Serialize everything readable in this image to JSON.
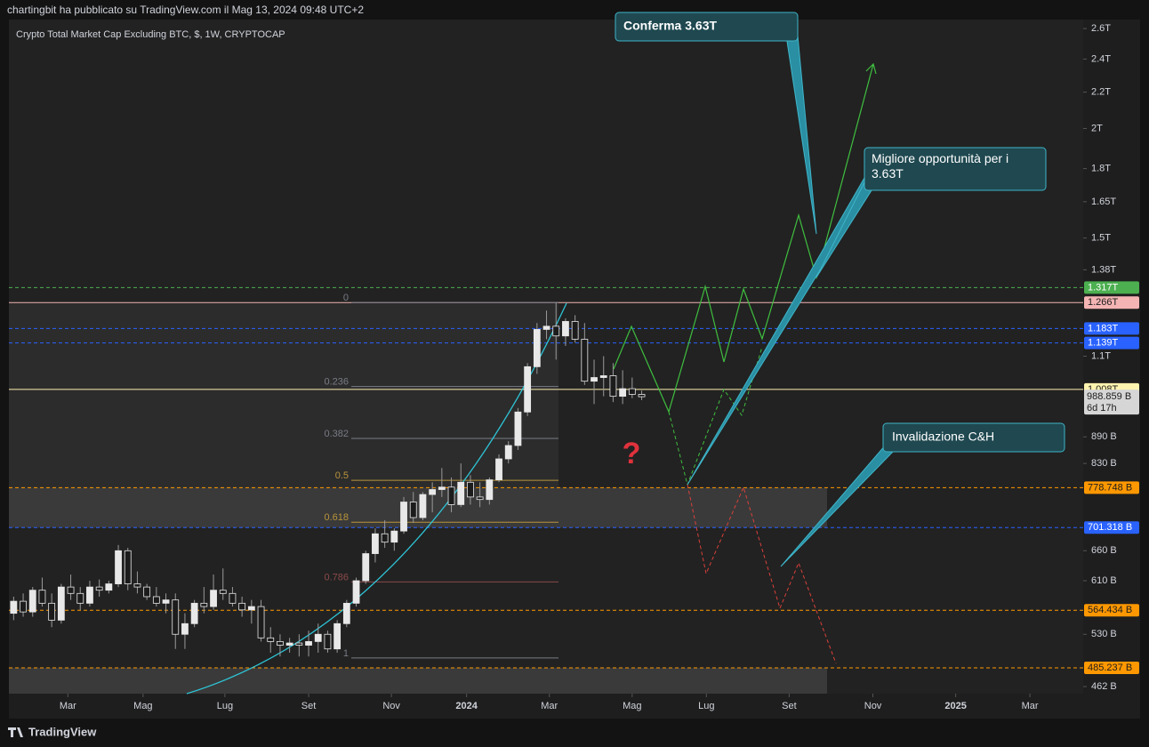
{
  "header": {
    "publisher": "chartingbit ha pubblicato su TradingView.com il Mag 13, 2024 09:48 UTC+2"
  },
  "footer": {
    "brand": "TradingView"
  },
  "chart_data": {
    "type": "candlestick",
    "title": "Crypto Total Market Cap Excluding BTC, $, 1W, CRYPTOCAP",
    "log_scale": true,
    "up_color": "#e8e8e8",
    "down_color": "#1c1c1c",
    "x": [
      0,
      1,
      2,
      3,
      4,
      5,
      6,
      7,
      8,
      9,
      10,
      11,
      12,
      13,
      14,
      15,
      16,
      17,
      18,
      19,
      20,
      21,
      22,
      23,
      24,
      25,
      26,
      27,
      28,
      29,
      30,
      31,
      32,
      33,
      34,
      35,
      36,
      37,
      38,
      39,
      40,
      41,
      42,
      43,
      44,
      45,
      46,
      47,
      48,
      49,
      50,
      51,
      52,
      53,
      54,
      55,
      56,
      57,
      58,
      59,
      60,
      61,
      62,
      63,
      64,
      65,
      66
    ],
    "open": [
      560,
      578,
      562,
      595,
      575,
      550,
      600,
      590,
      575,
      600,
      595,
      605,
      660,
      605,
      600,
      585,
      575,
      580,
      530,
      545,
      575,
      570,
      595,
      590,
      575,
      565,
      570,
      525,
      520,
      515,
      518,
      515,
      520,
      530,
      510,
      545,
      575,
      610,
      655,
      690,
      675,
      695,
      750,
      720,
      765,
      775,
      780,
      745,
      790,
      760,
      755,
      795,
      840,
      870,
      950,
      1070,
      1180,
      1190,
      1160,
      1205,
      1150,
      1030,
      1040,
      1045,
      990,
      1010,
      995
    ],
    "high": [
      585,
      590,
      600,
      615,
      590,
      605,
      620,
      600,
      610,
      612,
      610,
      670,
      665,
      625,
      605,
      600,
      590,
      590,
      560,
      580,
      600,
      620,
      630,
      600,
      585,
      580,
      580,
      540,
      530,
      525,
      530,
      535,
      545,
      535,
      550,
      580,
      615,
      660,
      700,
      715,
      700,
      760,
      770,
      770,
      790,
      820,
      800,
      830,
      805,
      790,
      800,
      850,
      880,
      960,
      1080,
      1200,
      1240,
      1266,
      1215,
      1225,
      1200,
      1090,
      1100,
      1080,
      1060,
      1040,
      1005
    ],
    "low": [
      550,
      555,
      555,
      570,
      540,
      545,
      580,
      565,
      570,
      585,
      590,
      600,
      595,
      590,
      580,
      570,
      560,
      510,
      510,
      540,
      560,
      565,
      580,
      570,
      555,
      545,
      520,
      505,
      500,
      505,
      500,
      500,
      505,
      505,
      505,
      540,
      570,
      605,
      640,
      665,
      660,
      690,
      710,
      715,
      730,
      760,
      730,
      740,
      745,
      740,
      745,
      790,
      830,
      860,
      940,
      1050,
      1150,
      1090,
      1130,
      1140,
      1020,
      970,
      990,
      975,
      970,
      985,
      980
    ],
    "close": [
      578,
      562,
      595,
      575,
      550,
      600,
      590,
      575,
      600,
      595,
      605,
      660,
      605,
      600,
      585,
      575,
      580,
      530,
      545,
      575,
      570,
      595,
      590,
      575,
      565,
      570,
      525,
      520,
      515,
      518,
      515,
      520,
      530,
      510,
      545,
      575,
      610,
      655,
      690,
      675,
      695,
      750,
      720,
      765,
      775,
      780,
      745,
      790,
      760,
      755,
      795,
      840,
      870,
      950,
      1070,
      1180,
      1190,
      1160,
      1205,
      1150,
      1030,
      1040,
      1045,
      990,
      1010,
      995,
      988.859
    ],
    "xlim": [
      -0.5,
      112.4
    ],
    "xticks": [
      {
        "value": 5.7,
        "label": "Mar"
      },
      {
        "value": 13.6,
        "label": "Mag"
      },
      {
        "value": 22.2,
        "label": "Lug"
      },
      {
        "value": 31.0,
        "label": "Set"
      },
      {
        "value": 39.7,
        "label": "Nov"
      },
      {
        "value": 47.6,
        "label": "2024"
      },
      {
        "value": 56.3,
        "label": "Mar"
      },
      {
        "value": 65.0,
        "label": "Mag"
      },
      {
        "value": 72.8,
        "label": "Lug"
      },
      {
        "value": 81.5,
        "label": "Set"
      },
      {
        "value": 90.3,
        "label": "Nov"
      },
      {
        "value": 99.0,
        "label": "2025"
      },
      {
        "value": 106.8,
        "label": "Mar"
      }
    ],
    "ylim": [
      453.5,
      2662
    ],
    "yticks": [
      {
        "value": 2600,
        "label": "2.6T"
      },
      {
        "value": 2400,
        "label": "2.4T"
      },
      {
        "value": 2200,
        "label": "2.2T"
      },
      {
        "value": 2000,
        "label": "2T"
      },
      {
        "value": 1800,
        "label": "1.8T"
      },
      {
        "value": 1650,
        "label": "1.65T"
      },
      {
        "value": 1500,
        "label": "1.5T"
      },
      {
        "value": 1380,
        "label": "1.38T"
      },
      {
        "value": 1100,
        "label": "1.1T"
      },
      {
        "value": 890,
        "label": "890 B"
      },
      {
        "value": 830,
        "label": "830 B"
      },
      {
        "value": 660,
        "label": "660 B"
      },
      {
        "value": 610,
        "label": "610 B"
      },
      {
        "value": 530,
        "label": "530 B"
      },
      {
        "value": 462,
        "label": "462 B"
      }
    ],
    "price_lines": [
      {
        "value": 1317,
        "label": "1.317T",
        "color": "#4caf50",
        "text_color": "#ffffff",
        "style": "dashed"
      },
      {
        "value": 1266,
        "label": "1.266T",
        "color": "#f4b4b4",
        "text_color": "#1c1c1c",
        "style": "solid"
      },
      {
        "value": 1183,
        "label": "1.183T",
        "color": "#2962ff",
        "text_color": "#ffffff",
        "style": "dashed"
      },
      {
        "value": 1139,
        "label": "1.139T",
        "color": "#2962ff",
        "text_color": "#ffffff",
        "style": "dashed"
      },
      {
        "value": 1008,
        "label": "1.008T",
        "color": "#fff3b0",
        "text_color": "#1c1c1c",
        "style": "solid"
      },
      {
        "value": 778.748,
        "label": "778.748 B",
        "color": "#ff9800",
        "text_color": "#1c1c1c",
        "style": "dashed"
      },
      {
        "value": 701.318,
        "label": "701.318 B",
        "color": "#2962ff",
        "text_color": "#ffffff",
        "style": "dashed"
      },
      {
        "value": 564.434,
        "label": "564.434 B",
        "color": "#ff9800",
        "text_color": "#1c1c1c",
        "style": "dashed"
      },
      {
        "value": 485.237,
        "label": "485.237 B",
        "color": "#ff9800",
        "text_color": "#1c1c1c",
        "style": "dashed"
      }
    ],
    "last_price": {
      "value": 988.859,
      "label": "988.859 B",
      "countdown": "6d 17h"
    },
    "fib": {
      "range": [
        1266,
        498
      ],
      "levels": [
        0,
        0.236,
        0.382,
        0.5,
        0.618,
        0.786,
        1
      ],
      "colors": [
        "#787b86",
        "#787b86",
        "#787b86",
        "#b8943c",
        "#b8943c",
        "#8c4a4a",
        "#787b86"
      ]
    },
    "annotations": [
      "Conferma 3.63T",
      "Migliore opportunità per i 3.63T",
      "Invalidazione C&H",
      "?"
    ]
  }
}
